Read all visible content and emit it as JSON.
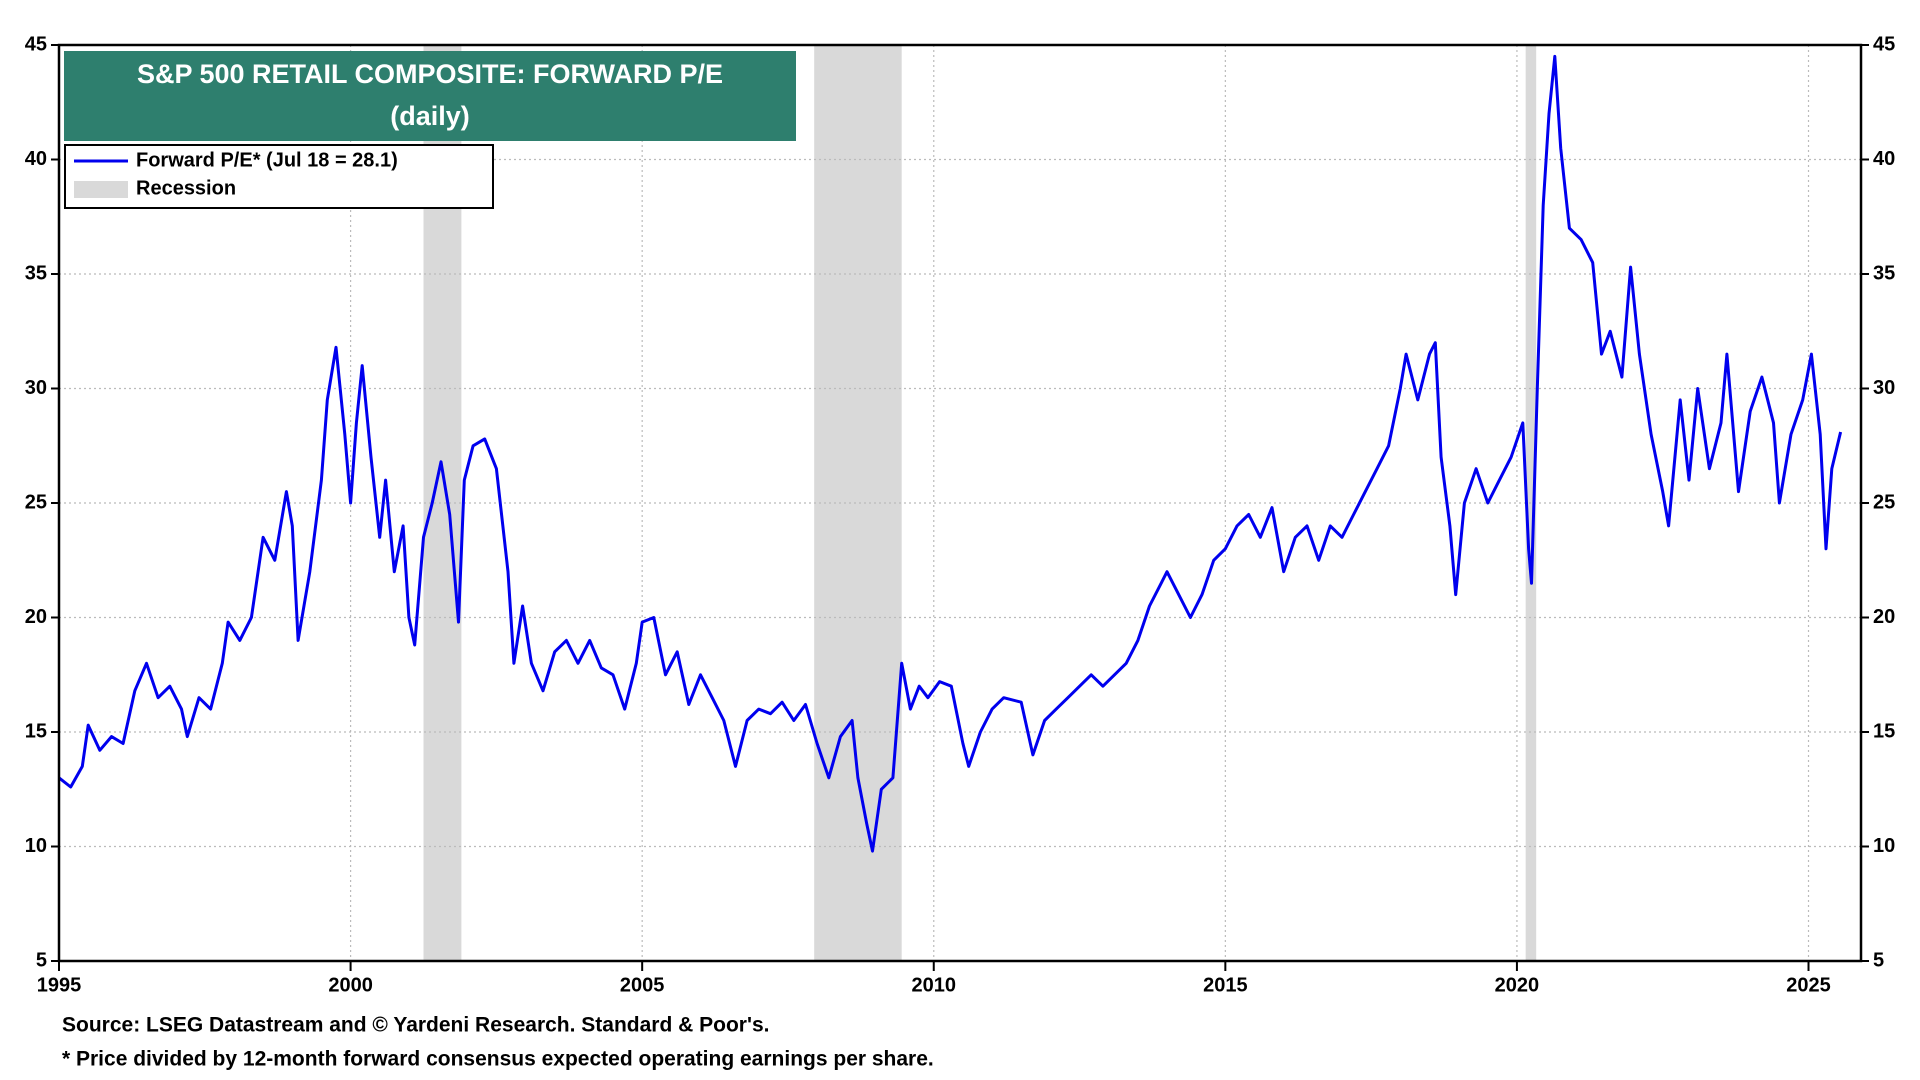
{
  "chart_data": {
    "type": "line",
    "title": "S&P 500 RETAIL COMPOSITE: FORWARD P/E",
    "subtitle": "(daily)",
    "x": [
      1995.0,
      1995.2,
      1995.4,
      1995.5,
      1995.7,
      1995.9,
      1996.1,
      1996.3,
      1996.5,
      1996.7,
      1996.9,
      1997.1,
      1997.2,
      1997.4,
      1997.6,
      1997.8,
      1997.9,
      1998.1,
      1998.3,
      1998.5,
      1998.7,
      1998.9,
      1999.0,
      1999.1,
      1999.3,
      1999.5,
      1999.6,
      1999.75,
      1999.9,
      2000.0,
      2000.1,
      2000.2,
      2000.35,
      2000.5,
      2000.6,
      2000.75,
      2000.9,
      2001.0,
      2001.1,
      2001.25,
      2001.4,
      2001.55,
      2001.7,
      2001.85,
      2001.95,
      2002.1,
      2002.3,
      2002.5,
      2002.7,
      2002.8,
      2002.95,
      2003.1,
      2003.3,
      2003.5,
      2003.7,
      2003.9,
      2004.1,
      2004.3,
      2004.5,
      2004.7,
      2004.9,
      2005.0,
      2005.2,
      2005.4,
      2005.6,
      2005.8,
      2006.0,
      2006.2,
      2006.4,
      2006.6,
      2006.8,
      2007.0,
      2007.2,
      2007.4,
      2007.6,
      2007.8,
      2008.0,
      2008.2,
      2008.4,
      2008.6,
      2008.7,
      2008.85,
      2008.95,
      2009.1,
      2009.3,
      2009.45,
      2009.6,
      2009.75,
      2009.9,
      2010.1,
      2010.3,
      2010.5,
      2010.6,
      2010.8,
      2011.0,
      2011.2,
      2011.5,
      2011.7,
      2011.9,
      2012.1,
      2012.3,
      2012.5,
      2012.7,
      2012.9,
      2013.1,
      2013.3,
      2013.5,
      2013.7,
      2013.9,
      2014.0,
      2014.2,
      2014.4,
      2014.6,
      2014.8,
      2015.0,
      2015.2,
      2015.4,
      2015.6,
      2015.8,
      2016.0,
      2016.2,
      2016.4,
      2016.6,
      2016.8,
      2017.0,
      2017.2,
      2017.4,
      2017.6,
      2017.8,
      2018.0,
      2018.1,
      2018.3,
      2018.5,
      2018.6,
      2018.7,
      2018.85,
      2018.95,
      2019.1,
      2019.3,
      2019.5,
      2019.7,
      2019.9,
      2020.1,
      2020.2,
      2020.25,
      2020.35,
      2020.45,
      2020.55,
      2020.65,
      2020.75,
      2020.9,
      2021.1,
      2021.3,
      2021.45,
      2021.6,
      2021.8,
      2021.95,
      2022.1,
      2022.3,
      2022.5,
      2022.6,
      2022.8,
      2022.95,
      2023.1,
      2023.3,
      2023.5,
      2023.6,
      2023.8,
      2024.0,
      2024.2,
      2024.4,
      2024.5,
      2024.7,
      2024.9,
      2025.05,
      2025.2,
      2025.3,
      2025.4,
      2025.55
    ],
    "series": [
      {
        "name": "Forward P/E* (Jul 18 = 28.1)",
        "color": "#0000ee",
        "values": [
          13,
          12.6,
          13.5,
          15.3,
          14.2,
          14.8,
          14.5,
          16.8,
          18.0,
          16.5,
          17.0,
          16.0,
          14.8,
          16.5,
          16.0,
          18.0,
          19.8,
          19.0,
          20.0,
          23.5,
          22.5,
          25.5,
          24.0,
          19.0,
          22.0,
          26.0,
          29.5,
          31.8,
          28.0,
          25.0,
          28.5,
          31.0,
          27.0,
          23.5,
          26.0,
          22.0,
          24.0,
          20.0,
          18.8,
          23.5,
          25.0,
          26.8,
          24.5,
          19.8,
          26.0,
          27.5,
          27.8,
          26.5,
          22.0,
          18.0,
          20.5,
          18.0,
          16.8,
          18.5,
          19.0,
          18.0,
          19.0,
          17.8,
          17.5,
          16.0,
          18.0,
          19.8,
          20.0,
          17.5,
          18.5,
          16.2,
          17.5,
          16.5,
          15.5,
          13.5,
          15.5,
          16.0,
          15.8,
          16.3,
          15.5,
          16.2,
          14.5,
          13.0,
          14.8,
          15.5,
          13.0,
          11.0,
          9.8,
          12.5,
          13.0,
          18.0,
          16.0,
          17.0,
          16.5,
          17.2,
          17.0,
          14.5,
          13.5,
          15.0,
          16.0,
          16.5,
          16.3,
          14.0,
          15.5,
          16.0,
          16.5,
          17.0,
          17.5,
          17.0,
          17.5,
          18.0,
          19.0,
          20.5,
          21.5,
          22.0,
          21.0,
          20.0,
          21.0,
          22.5,
          23.0,
          24.0,
          24.5,
          23.5,
          24.8,
          22.0,
          23.5,
          24.0,
          22.5,
          24.0,
          23.5,
          24.5,
          25.5,
          26.5,
          27.5,
          30.0,
          31.5,
          29.5,
          31.5,
          32.0,
          27.0,
          24.0,
          21.0,
          25.0,
          26.5,
          25.0,
          26.0,
          27.0,
          28.5,
          23.0,
          21.5,
          30.0,
          38.0,
          42.0,
          44.5,
          40.5,
          37.0,
          36.5,
          35.5,
          31.5,
          32.5,
          30.5,
          35.3,
          31.5,
          28.0,
          25.5,
          24.0,
          29.5,
          26.0,
          30.0,
          26.5,
          28.5,
          31.5,
          25.5,
          29.0,
          30.5,
          28.5,
          25.0,
          28.0,
          29.5,
          31.5,
          28.0,
          23.0,
          26.5,
          28.1
        ]
      }
    ],
    "recession_name": "Recession",
    "recessions": [
      [
        2001.25,
        2001.9
      ],
      [
        2007.95,
        2009.45
      ],
      [
        2020.15,
        2020.33
      ]
    ],
    "recession_color": "#d9d9d9",
    "xlim": [
      1995,
      2025.9
    ],
    "xticks": [
      1995,
      2000,
      2005,
      2010,
      2015,
      2020,
      2025
    ],
    "ylim": [
      5,
      45
    ],
    "yticks": [
      5,
      10,
      15,
      20,
      25,
      30,
      35,
      40,
      45
    ],
    "grid": true,
    "source": "Source: LSEG Datastream and © Yardeni Research. Standard & Poor's.",
    "note": "* Price divided by 12-month forward consensus expected operating earnings per share."
  }
}
